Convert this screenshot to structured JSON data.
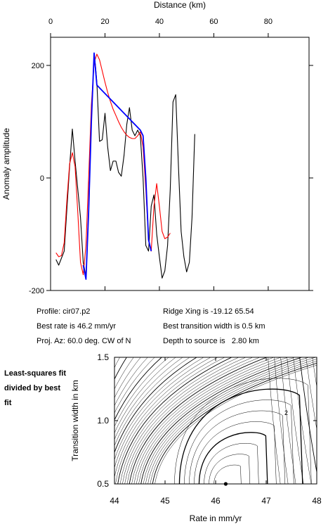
{
  "chart_data": [
    {
      "type": "line",
      "xlabel": "Distance (km)",
      "ylabel": "Anomaly amplitude",
      "xlim": [
        0,
        95
      ],
      "ylim": [
        -200,
        250
      ],
      "x_ticks": [
        0,
        20,
        40,
        60,
        80
      ],
      "y_ticks": [
        -200,
        0,
        200
      ],
      "series": [
        {
          "color": "#000000",
          "points": [
            [
              2,
              -145
            ],
            [
              3,
              -155
            ],
            [
              5,
              -130
            ],
            [
              7,
              20
            ],
            [
              8,
              87
            ],
            [
              9,
              30
            ],
            [
              11,
              -70
            ],
            [
              12,
              -150
            ],
            [
              13,
              -175
            ],
            [
              14,
              -60
            ],
            [
              15,
              100
            ],
            [
              16,
              220
            ],
            [
              16.5,
              200
            ],
            [
              17,
              170
            ],
            [
              18,
              65
            ],
            [
              19,
              68
            ],
            [
              20,
              115
            ],
            [
              21,
              55
            ],
            [
              22,
              13
            ],
            [
              23,
              30
            ],
            [
              24,
              30
            ],
            [
              25,
              10
            ],
            [
              26,
              3
            ],
            [
              27,
              40
            ],
            [
              28,
              95
            ],
            [
              29,
              125
            ],
            [
              30,
              85
            ],
            [
              31,
              75
            ],
            [
              32,
              85
            ],
            [
              33,
              75
            ],
            [
              34,
              0
            ],
            [
              35,
              -120
            ],
            [
              36,
              -130
            ],
            [
              37,
              -50
            ],
            [
              38,
              -30
            ],
            [
              39,
              -100
            ],
            [
              40,
              -140
            ],
            [
              41,
              -178
            ],
            [
              42,
              -165
            ],
            [
              43,
              -120
            ],
            [
              44,
              -20
            ],
            [
              45,
              135
            ],
            [
              46,
              148
            ],
            [
              47,
              20
            ],
            [
              48,
              -95
            ],
            [
              49,
              -140
            ],
            [
              50,
              -167
            ],
            [
              51,
              -150
            ],
            [
              52,
              -70
            ],
            [
              53,
              78
            ]
          ]
        },
        {
          "color": "#ff0000",
          "points": [
            [
              2,
              -133
            ],
            [
              3,
              -140
            ],
            [
              4,
              -138
            ],
            [
              5,
              -115
            ],
            [
              6,
              -40
            ],
            [
              7,
              25
            ],
            [
              8,
              45
            ],
            [
              9,
              20
            ],
            [
              10,
              -60
            ],
            [
              11,
              -150
            ],
            [
              12,
              -172
            ],
            [
              13,
              -120
            ],
            [
              14,
              0
            ],
            [
              15,
              130
            ],
            [
              16,
              205
            ],
            [
              17,
              220
            ],
            [
              18,
              210
            ],
            [
              19,
              190
            ],
            [
              20,
              170
            ],
            [
              21,
              152
            ],
            [
              22,
              136
            ],
            [
              23,
              122
            ],
            [
              24,
              111
            ],
            [
              25,
              100
            ],
            [
              26,
              90
            ],
            [
              27,
              82
            ],
            [
              28,
              76
            ],
            [
              29,
              72
            ],
            [
              30,
              70
            ],
            [
              31,
              70
            ],
            [
              32,
              75
            ],
            [
              33,
              82
            ],
            [
              34,
              55
            ],
            [
              35,
              -20
            ],
            [
              36,
              -110
            ],
            [
              37,
              -130
            ],
            [
              38,
              -50
            ],
            [
              39,
              -10
            ],
            [
              40,
              -50
            ],
            [
              41,
              -95
            ],
            [
              42,
              -108
            ],
            [
              43,
              -105
            ],
            [
              44,
              -98
            ]
          ]
        },
        {
          "color": "#0000ff",
          "points": [
            [
              12,
              -155
            ],
            [
              13,
              -180
            ],
            [
              14,
              -60
            ],
            [
              15,
              100
            ],
            [
              16,
              222
            ],
            [
              17,
              165
            ],
            [
              33,
              85
            ],
            [
              34,
              75
            ],
            [
              35,
              0
            ],
            [
              36,
              -110
            ],
            [
              37,
              -130
            ]
          ]
        }
      ]
    },
    {
      "type": "contour",
      "xlabel": "Rate in mm/yr",
      "ylabel": "Transition width in km",
      "xlim": [
        44,
        48
      ],
      "ylim": [
        0.5,
        1.5
      ],
      "x_ticks": [
        44,
        45,
        46,
        47,
        48
      ],
      "y_ticks": [
        0.5,
        1.0,
        1.5
      ],
      "best_fit": [
        46.2,
        0.5
      ],
      "contour_label": "2"
    }
  ],
  "info": {
    "profile": "Profile: cir07.p2",
    "best_rate": "Best rate is 46.2 mm/yr",
    "proj_az": "Proj. Az: 60.0 deg. CW of N",
    "ridge_xing": "Ridge Xing is -19.12 65.54",
    "best_width": "Best transition width is 0.5 km",
    "depth": "Depth to source is   2.80 km"
  },
  "side_note": "Least-squares fit divided by best fit"
}
